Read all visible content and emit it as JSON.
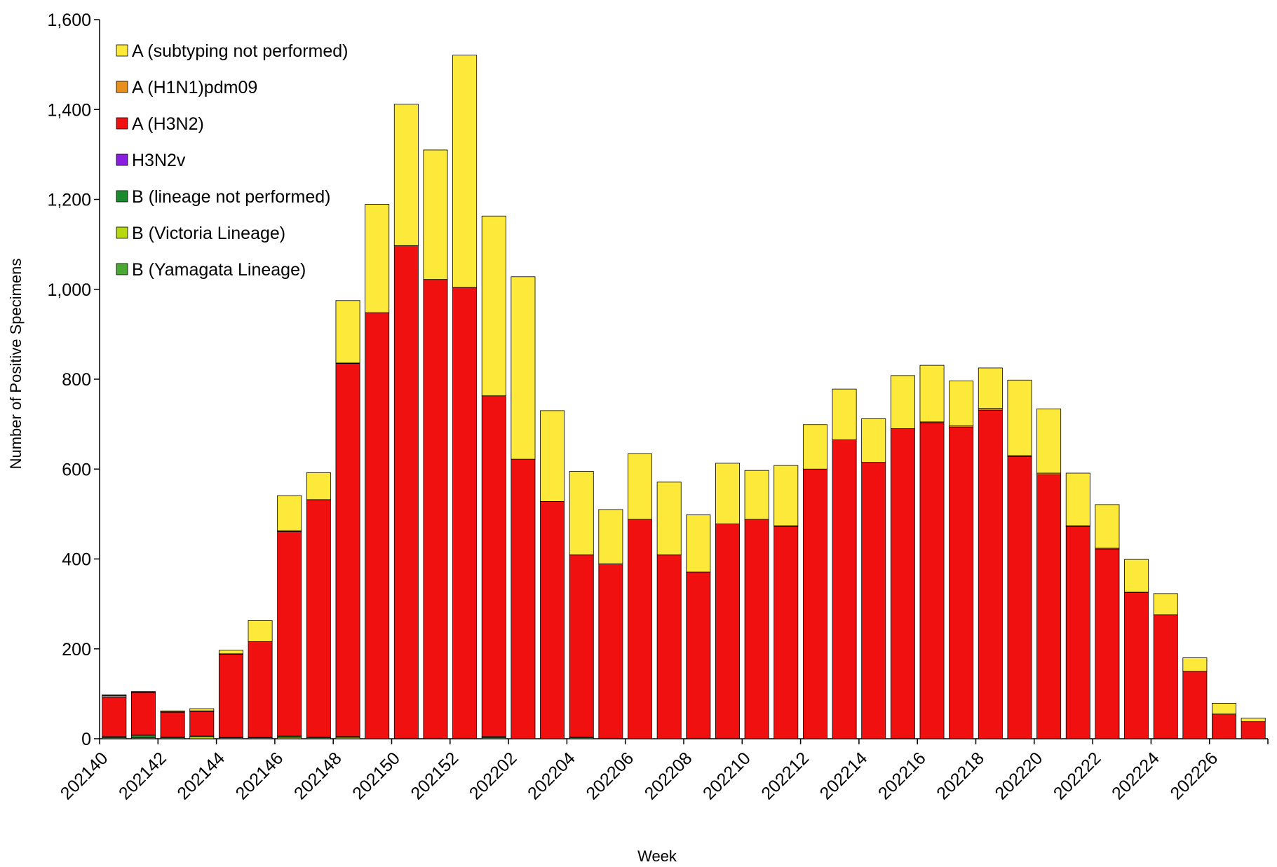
{
  "chart_data": {
    "type": "bar",
    "stacked": true,
    "title": "",
    "xlabel": "Week",
    "ylabel": "Number of Positive Specimens",
    "ylim": [
      0,
      1600
    ],
    "yticks": [
      0,
      200,
      400,
      600,
      800,
      1000,
      1200,
      1400,
      1600
    ],
    "ytick_labels": [
      "0",
      "200",
      "400",
      "600",
      "800",
      "1,000",
      "1,200",
      "1,400",
      "1,600"
    ],
    "grid": false,
    "legend_position": "top-left",
    "categories": [
      "202140",
      "202141",
      "202142",
      "202143",
      "202144",
      "202145",
      "202146",
      "202147",
      "202148",
      "202149",
      "202150",
      "202151",
      "202152",
      "202201",
      "202202",
      "202203",
      "202204",
      "202205",
      "202206",
      "202207",
      "202208",
      "202209",
      "202210",
      "202211",
      "202212",
      "202213",
      "202214",
      "202215",
      "202216",
      "202217",
      "202218",
      "202219",
      "202220",
      "202221",
      "202222",
      "202223",
      "202224",
      "202225",
      "202226",
      "202227"
    ],
    "xtick_labels": [
      "202140",
      "202142",
      "202144",
      "202146",
      "202148",
      "202150",
      "202152",
      "202202",
      "202204",
      "202206",
      "202208",
      "202210",
      "202212",
      "202214",
      "202216",
      "202218",
      "202220",
      "202222",
      "202224",
      "202226"
    ],
    "series": [
      {
        "name": "B (Yamagata Lineage)",
        "color": "#4aa832",
        "values": [
          0,
          0,
          0,
          0,
          0,
          0,
          0,
          0,
          0,
          0,
          0,
          0,
          0,
          0,
          0,
          0,
          0,
          0,
          0,
          0,
          0,
          0,
          0,
          0,
          0,
          0,
          0,
          0,
          0,
          0,
          0,
          0,
          0,
          0,
          0,
          0,
          0,
          0,
          0,
          0
        ]
      },
      {
        "name": "B (Victoria Lineage)",
        "color": "#b5d80e",
        "values": [
          2,
          2,
          2,
          5,
          2,
          2,
          3,
          2,
          3,
          0,
          0,
          0,
          0,
          2,
          0,
          0,
          2,
          0,
          0,
          0,
          0,
          0,
          0,
          0,
          0,
          0,
          0,
          0,
          0,
          0,
          0,
          0,
          0,
          0,
          0,
          0,
          0,
          0,
          0,
          0
        ]
      },
      {
        "name": "B (lineage not performed)",
        "color": "#1a8a2e",
        "values": [
          3,
          6,
          2,
          1,
          1,
          1,
          3,
          2,
          2,
          0,
          1,
          1,
          1,
          3,
          0,
          0,
          2,
          1,
          0,
          0,
          1,
          1,
          0,
          0,
          0,
          0,
          0,
          1,
          0,
          0,
          0,
          0,
          0,
          0,
          0,
          0,
          1,
          0,
          0,
          0
        ]
      },
      {
        "name": "H3N2v",
        "color": "#8a1ee0",
        "values": [
          0,
          0,
          0,
          0,
          0,
          0,
          0,
          0,
          0,
          0,
          0,
          0,
          0,
          0,
          0,
          0,
          0,
          0,
          0,
          0,
          0,
          0,
          0,
          0,
          0,
          0,
          0,
          0,
          0,
          0,
          0,
          0,
          0,
          0,
          0,
          0,
          0,
          0,
          0,
          0
        ]
      },
      {
        "name": "A (H3N2)",
        "color": "#f01010",
        "values": [
          88,
          95,
          55,
          55,
          185,
          213,
          455,
          528,
          830,
          948,
          1096,
          1021,
          1003,
          758,
          622,
          528,
          405,
          388,
          488,
          409,
          370,
          477,
          488,
          472,
          600,
          665,
          615,
          689,
          703,
          693,
          731,
          628,
          587,
          472,
          422,
          325,
          275,
          150,
          55,
          38
        ]
      },
      {
        "name": "A (H1N1)pdm09",
        "color": "#e8901a",
        "values": [
          3,
          1,
          1,
          1,
          1,
          0,
          2,
          0,
          1,
          0,
          0,
          0,
          0,
          0,
          0,
          0,
          0,
          0,
          0,
          0,
          0,
          0,
          0,
          2,
          0,
          0,
          0,
          0,
          2,
          3,
          4,
          2,
          4,
          2,
          2,
          1,
          0,
          0,
          0,
          0
        ]
      },
      {
        "name": "A (subtyping not performed)",
        "color": "#fce93a",
        "values": [
          2,
          1,
          2,
          5,
          8,
          47,
          78,
          60,
          139,
          241,
          315,
          288,
          517,
          400,
          406,
          202,
          186,
          121,
          146,
          162,
          127,
          135,
          109,
          134,
          99,
          113,
          97,
          118,
          126,
          100,
          90,
          168,
          143,
          117,
          97,
          73,
          47,
          30,
          24,
          8
        ]
      }
    ]
  }
}
